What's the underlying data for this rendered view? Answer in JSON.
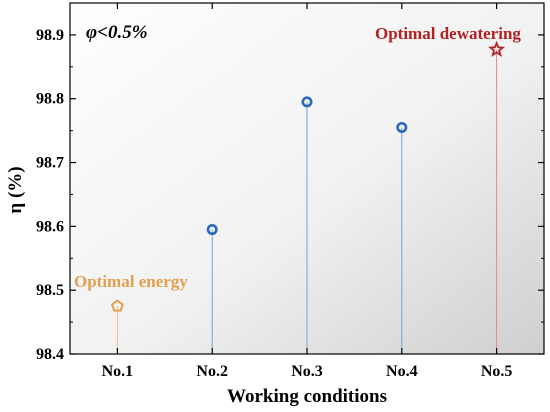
{
  "chart_data": {
    "type": "scatter",
    "categories": [
      "No.1",
      "No.2",
      "No.3",
      "No.4",
      "No.5"
    ],
    "values": [
      98.475,
      98.595,
      98.795,
      98.755,
      98.877
    ],
    "markers": [
      "pentagon",
      "circle",
      "circle",
      "circle",
      "star"
    ],
    "ylim": [
      98.4,
      98.95
    ],
    "yticks": [
      "98.4",
      "98.5",
      "98.6",
      "98.7",
      "98.8",
      "98.9"
    ],
    "ytick_values": [
      98.4,
      98.5,
      98.6,
      98.7,
      98.8,
      98.9
    ],
    "ylabel": "η (%)",
    "xlabel": "Working conditions",
    "condition": "φ<0.5%",
    "annotations": [
      {
        "text": "Optimal energy",
        "category": "No.1",
        "color": "#e0a050"
      },
      {
        "text": "Optimal dewatering",
        "category": "No.5",
        "color": "#b22222"
      }
    ],
    "colors": {
      "circle": "#2a6ab8",
      "pentagon": "#e0a050",
      "star": "#b22222",
      "stem_default": "#6fa8c8",
      "stem_energy": "#e8c088",
      "stem_dewater": "#e08a8a"
    },
    "grid": false,
    "legend": "none"
  }
}
